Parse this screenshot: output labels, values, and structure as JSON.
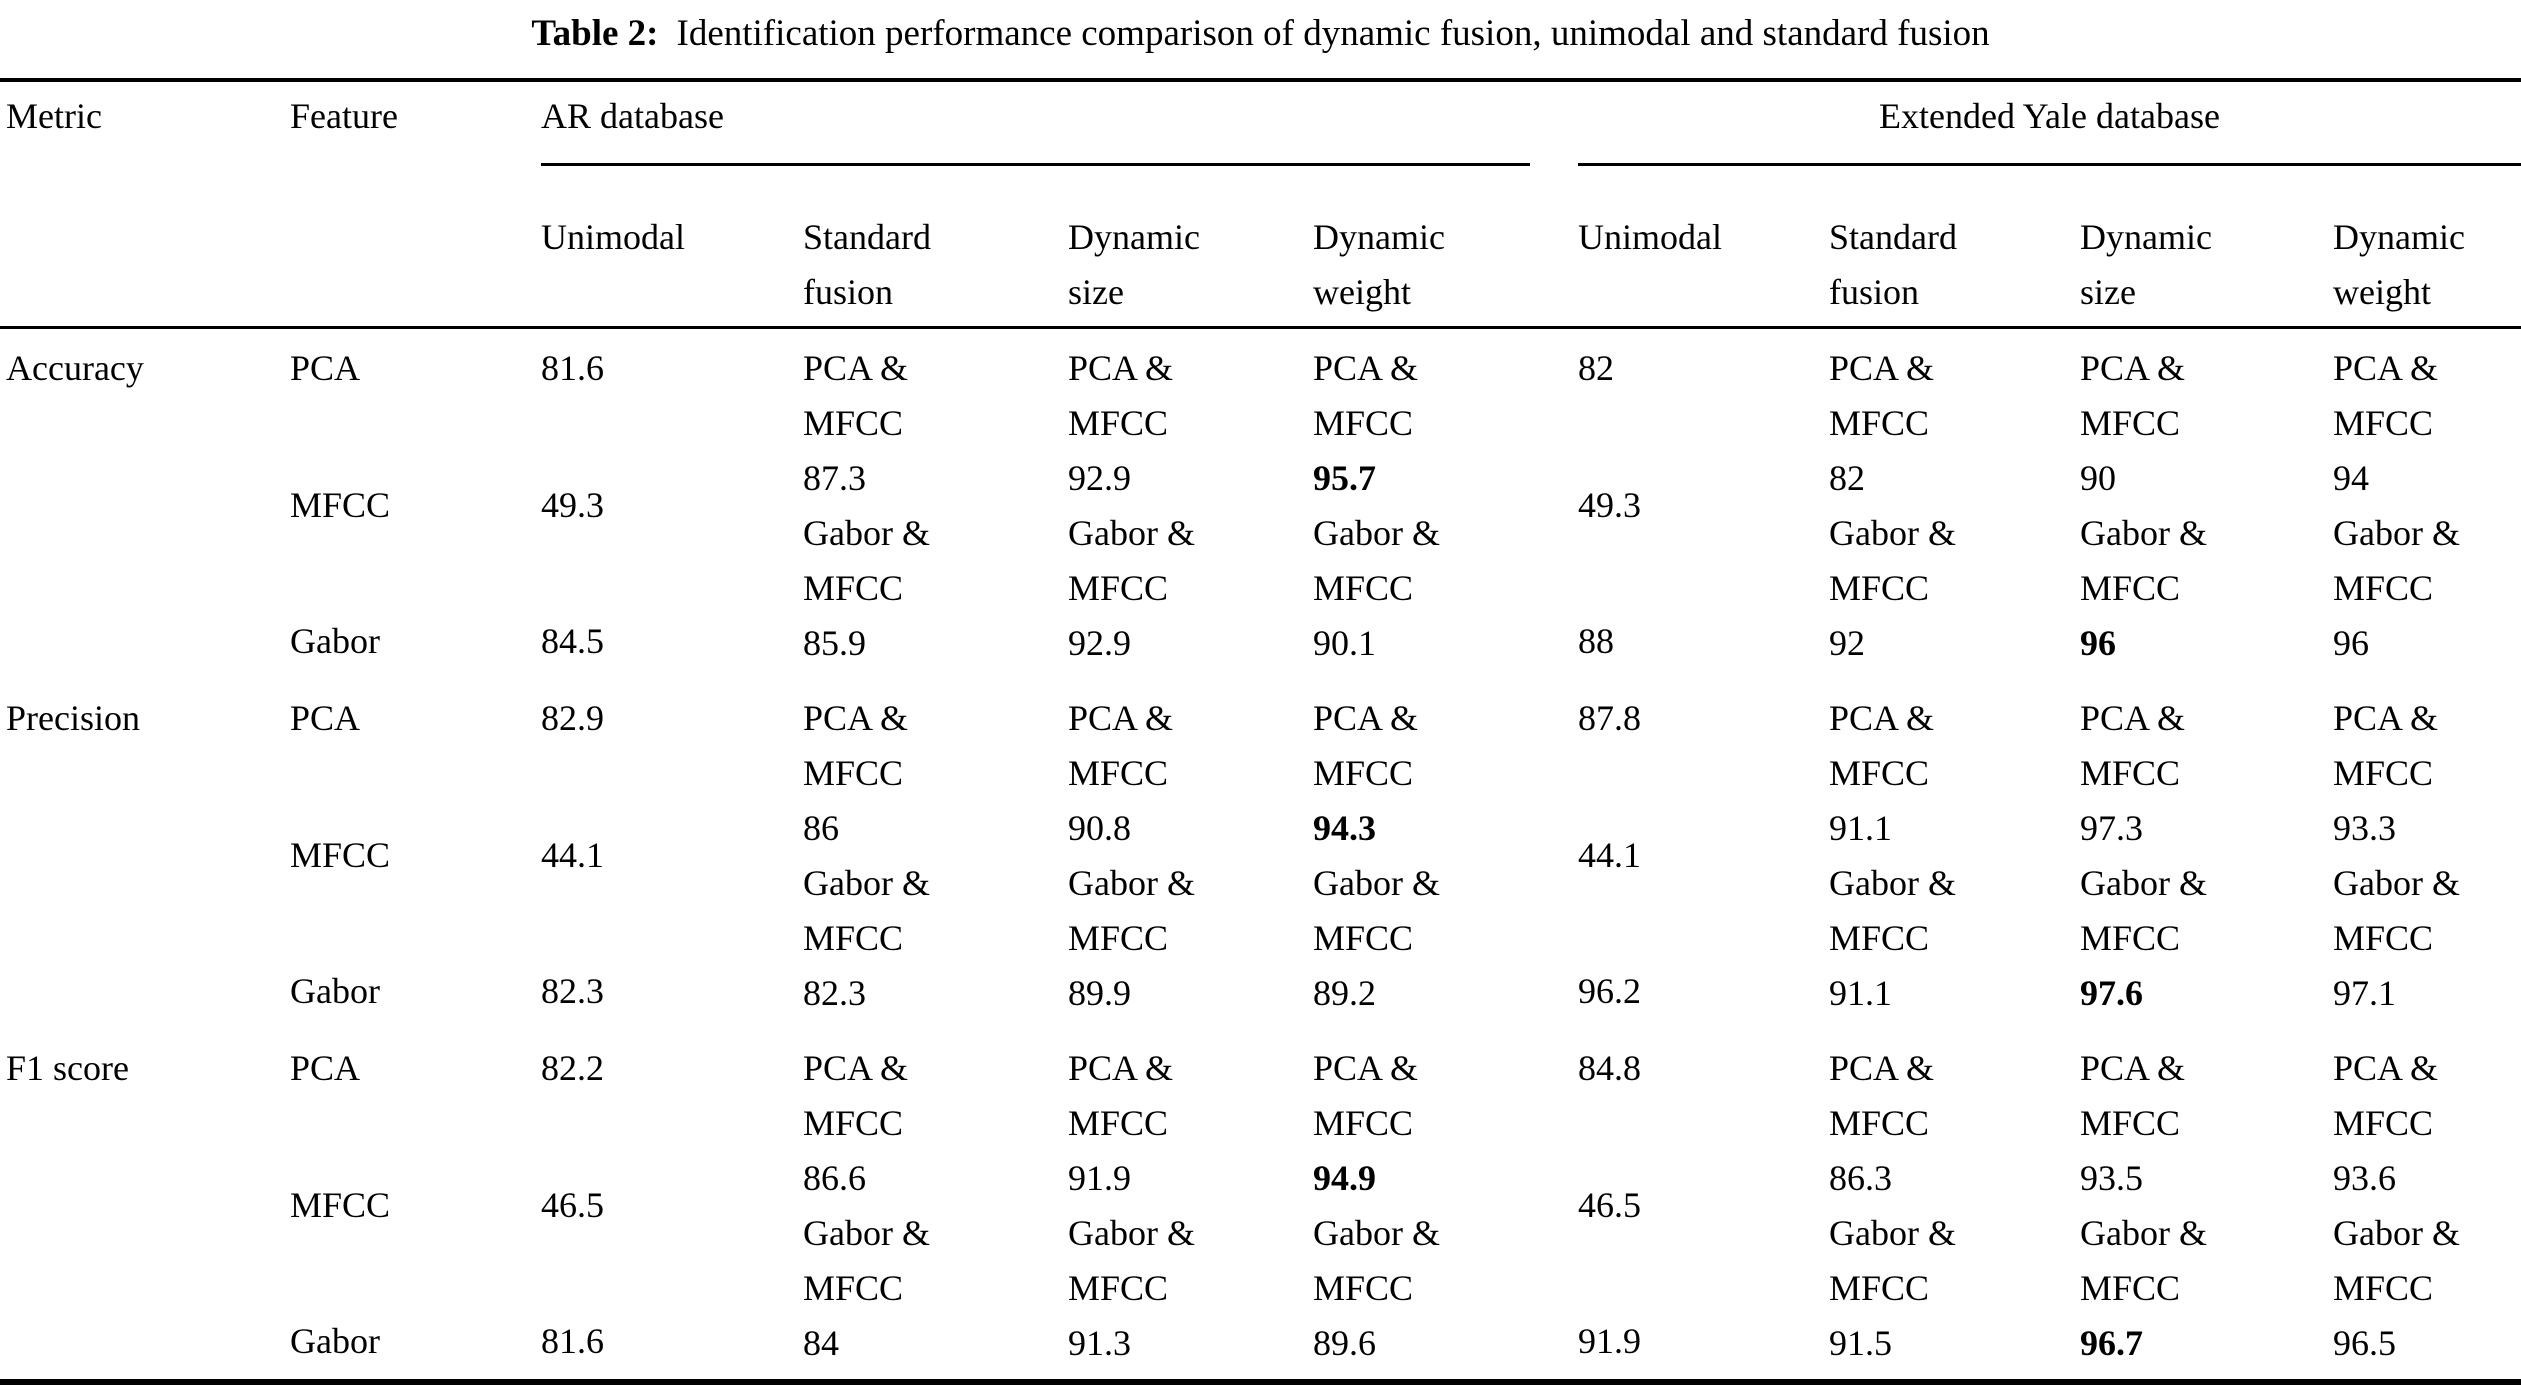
{
  "caption": {
    "label": "Table 2:",
    "text": "Identification performance comparison of dynamic fusion, unimodal and standard fusion"
  },
  "header": {
    "metric": "Metric",
    "feature": "Feature",
    "ar_group": "AR database",
    "ey_group": "Extended Yale database",
    "ar_subcols": [
      "Unimodal",
      "Standard fusion",
      "Dynamic size",
      "Dynamic weight"
    ],
    "ey_subcols": [
      "Unimodal",
      "Standard fusion",
      "Dynamic size",
      "Dynamic weight"
    ]
  },
  "groups": [
    {
      "metric": "Accuracy",
      "features": [
        "PCA",
        "MFCC",
        "Gabor"
      ],
      "ar": {
        "unimodal": [
          "81.6",
          "49.3",
          "84.5"
        ],
        "standard_fusion": [
          {
            "label": "PCA & MFCC",
            "value": "87.3",
            "bold": false
          },
          {
            "label": "Gabor & MFCC",
            "value": "85.9",
            "bold": false
          }
        ],
        "dynamic_size": [
          {
            "label": "PCA & MFCC",
            "value": "92.9",
            "bold": false
          },
          {
            "label": "Gabor & MFCC",
            "value": "92.9",
            "bold": false
          }
        ],
        "dynamic_weight": [
          {
            "label": "PCA & MFCC",
            "value": "95.7",
            "bold": true
          },
          {
            "label": "Gabor & MFCC",
            "value": "90.1",
            "bold": false
          }
        ]
      },
      "ey": {
        "unimodal": [
          "82",
          "49.3",
          "88"
        ],
        "standard_fusion": [
          {
            "label": "PCA & MFCC",
            "value": "82",
            "bold": false
          },
          {
            "label": "Gabor & MFCC",
            "value": "92",
            "bold": false
          }
        ],
        "dynamic_size": [
          {
            "label": "PCA & MFCC",
            "value": "90",
            "bold": false
          },
          {
            "label": "Gabor & MFCC",
            "value": "96",
            "bold": true
          }
        ],
        "dynamic_weight": [
          {
            "label": "PCA & MFCC",
            "value": "94",
            "bold": false
          },
          {
            "label": "Gabor & MFCC",
            "value": "96",
            "bold": false
          }
        ]
      }
    },
    {
      "metric": "Precision",
      "features": [
        "PCA",
        "MFCC",
        "Gabor"
      ],
      "ar": {
        "unimodal": [
          "82.9",
          "44.1",
          "82.3"
        ],
        "standard_fusion": [
          {
            "label": "PCA & MFCC",
            "value": "86",
            "bold": false
          },
          {
            "label": "Gabor & MFCC",
            "value": "82.3",
            "bold": false
          }
        ],
        "dynamic_size": [
          {
            "label": "PCA & MFCC",
            "value": "90.8",
            "bold": false
          },
          {
            "label": "Gabor & MFCC",
            "value": "89.9",
            "bold": false
          }
        ],
        "dynamic_weight": [
          {
            "label": "PCA & MFCC",
            "value": "94.3",
            "bold": true
          },
          {
            "label": "Gabor & MFCC",
            "value": "89.2",
            "bold": false
          }
        ]
      },
      "ey": {
        "unimodal": [
          "87.8",
          "44.1",
          "96.2"
        ],
        "standard_fusion": [
          {
            "label": "PCA & MFCC",
            "value": "91.1",
            "bold": false
          },
          {
            "label": "Gabor & MFCC",
            "value": "91.1",
            "bold": false
          }
        ],
        "dynamic_size": [
          {
            "label": "PCA & MFCC",
            "value": "97.3",
            "bold": false
          },
          {
            "label": "Gabor & MFCC",
            "value": "97.6",
            "bold": true
          }
        ],
        "dynamic_weight": [
          {
            "label": "PCA & MFCC",
            "value": "93.3",
            "bold": false
          },
          {
            "label": "Gabor & MFCC",
            "value": "97.1",
            "bold": false
          }
        ]
      }
    },
    {
      "metric": "F1 score",
      "features": [
        "PCA",
        "MFCC",
        "Gabor"
      ],
      "ar": {
        "unimodal": [
          "82.2",
          "46.5",
          "81.6"
        ],
        "standard_fusion": [
          {
            "label": "PCA & MFCC",
            "value": "86.6",
            "bold": false
          },
          {
            "label": "Gabor & MFCC",
            "value": "84",
            "bold": false
          }
        ],
        "dynamic_size": [
          {
            "label": "PCA & MFCC",
            "value": "91.9",
            "bold": false
          },
          {
            "label": "Gabor & MFCC",
            "value": "91.3",
            "bold": false
          }
        ],
        "dynamic_weight": [
          {
            "label": "PCA & MFCC",
            "value": "94.9",
            "bold": true
          },
          {
            "label": "Gabor & MFCC",
            "value": "89.6",
            "bold": false
          }
        ]
      },
      "ey": {
        "unimodal": [
          "84.8",
          "46.5",
          "91.9"
        ],
        "standard_fusion": [
          {
            "label": "PCA & MFCC",
            "value": "86.3",
            "bold": false
          },
          {
            "label": "Gabor & MFCC",
            "value": "91.5",
            "bold": false
          }
        ],
        "dynamic_size": [
          {
            "label": "PCA & MFCC",
            "value": "93.5",
            "bold": false
          },
          {
            "label": "Gabor & MFCC",
            "value": "96.7",
            "bold": true
          }
        ],
        "dynamic_weight": [
          {
            "label": "PCA & MFCC",
            "value": "93.6",
            "bold": false
          },
          {
            "label": "Gabor & MFCC",
            "value": "96.5",
            "bold": false
          }
        ]
      }
    }
  ]
}
